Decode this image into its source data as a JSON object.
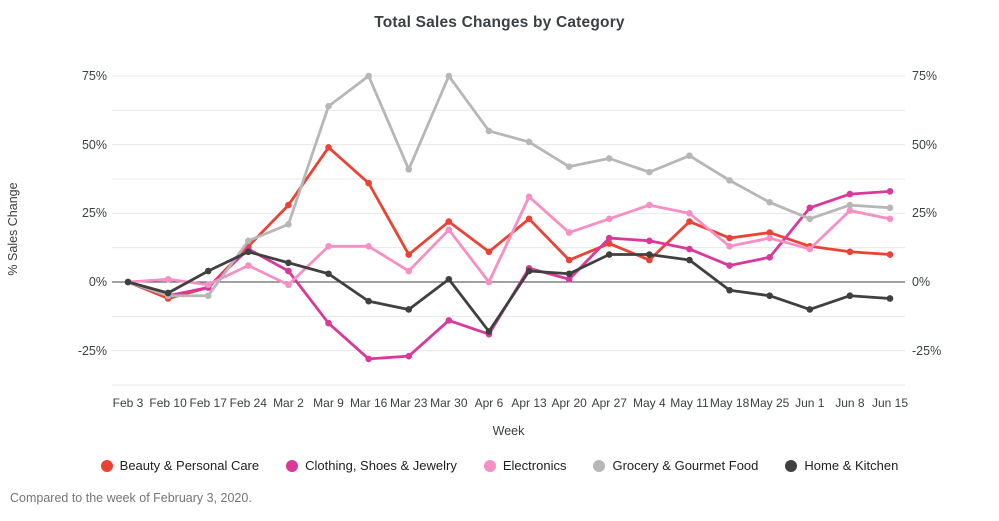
{
  "chart_data": {
    "type": "line",
    "title": "Total Sales Changes by Category",
    "xlabel": "Week",
    "ylabel": "% Sales Change",
    "footnote": "Compared to the week of February 3, 2020.",
    "legend_position": "bottom",
    "grid": "horizontal lines every 12.5%, dark emphasized zero line",
    "grid_step": 12.5,
    "ylim": [
      -37.5,
      75
    ],
    "y_unit": "%",
    "y_tick_values": [
      75,
      50,
      25,
      0,
      -25
    ],
    "y_tick_labels": [
      "75%",
      "50%",
      "25%",
      "0%",
      "-25%"
    ],
    "dual_y_axis": true,
    "categories": [
      "Feb 3",
      "Feb 10",
      "Feb 17",
      "Feb 24",
      "Mar 2",
      "Mar 9",
      "Mar 16",
      "Mar 23",
      "Mar 30",
      "Apr 6",
      "Apr 13",
      "Apr 20",
      "Apr 27",
      "May 4",
      "May 11",
      "May 18",
      "May 25",
      "Jun 1",
      "Jun 8",
      "Jun 15"
    ],
    "series": [
      {
        "name": "Beauty & Personal Care",
        "color": "#ea4335",
        "values": [
          0,
          -6,
          -2,
          13,
          28,
          49,
          36,
          10,
          22,
          11,
          23,
          8,
          14,
          8,
          22,
          16,
          18,
          13,
          11,
          10
        ]
      },
      {
        "name": "Clothing, Shoes & Jewelry",
        "color": "#d9399b",
        "values": [
          0,
          -5,
          -2,
          12,
          4,
          -15,
          -28,
          -27,
          -14,
          -19,
          5,
          1,
          16,
          15,
          12,
          6,
          9,
          27,
          32,
          33
        ]
      },
      {
        "name": "Electronics",
        "color": "#f78fc5",
        "values": [
          0,
          1,
          -1,
          6,
          -1,
          13,
          13,
          4,
          19,
          0,
          31,
          18,
          23,
          28,
          25,
          13,
          16,
          12,
          26,
          23
        ]
      },
      {
        "name": "Grocery & Gourmet Food",
        "color": "#b7b7b7",
        "values": [
          0,
          -5,
          -5,
          15,
          21,
          64,
          75,
          41,
          75,
          55,
          51,
          42,
          45,
          40,
          46,
          37,
          29,
          23,
          28,
          27
        ]
      },
      {
        "name": "Home & Kitchen",
        "color": "#404040",
        "values": [
          0,
          -4,
          4,
          11,
          7,
          3,
          -7,
          -10,
          1,
          -18,
          4,
          3,
          10,
          10,
          8,
          -3,
          -5,
          -10,
          -5,
          -6
        ]
      }
    ]
  }
}
